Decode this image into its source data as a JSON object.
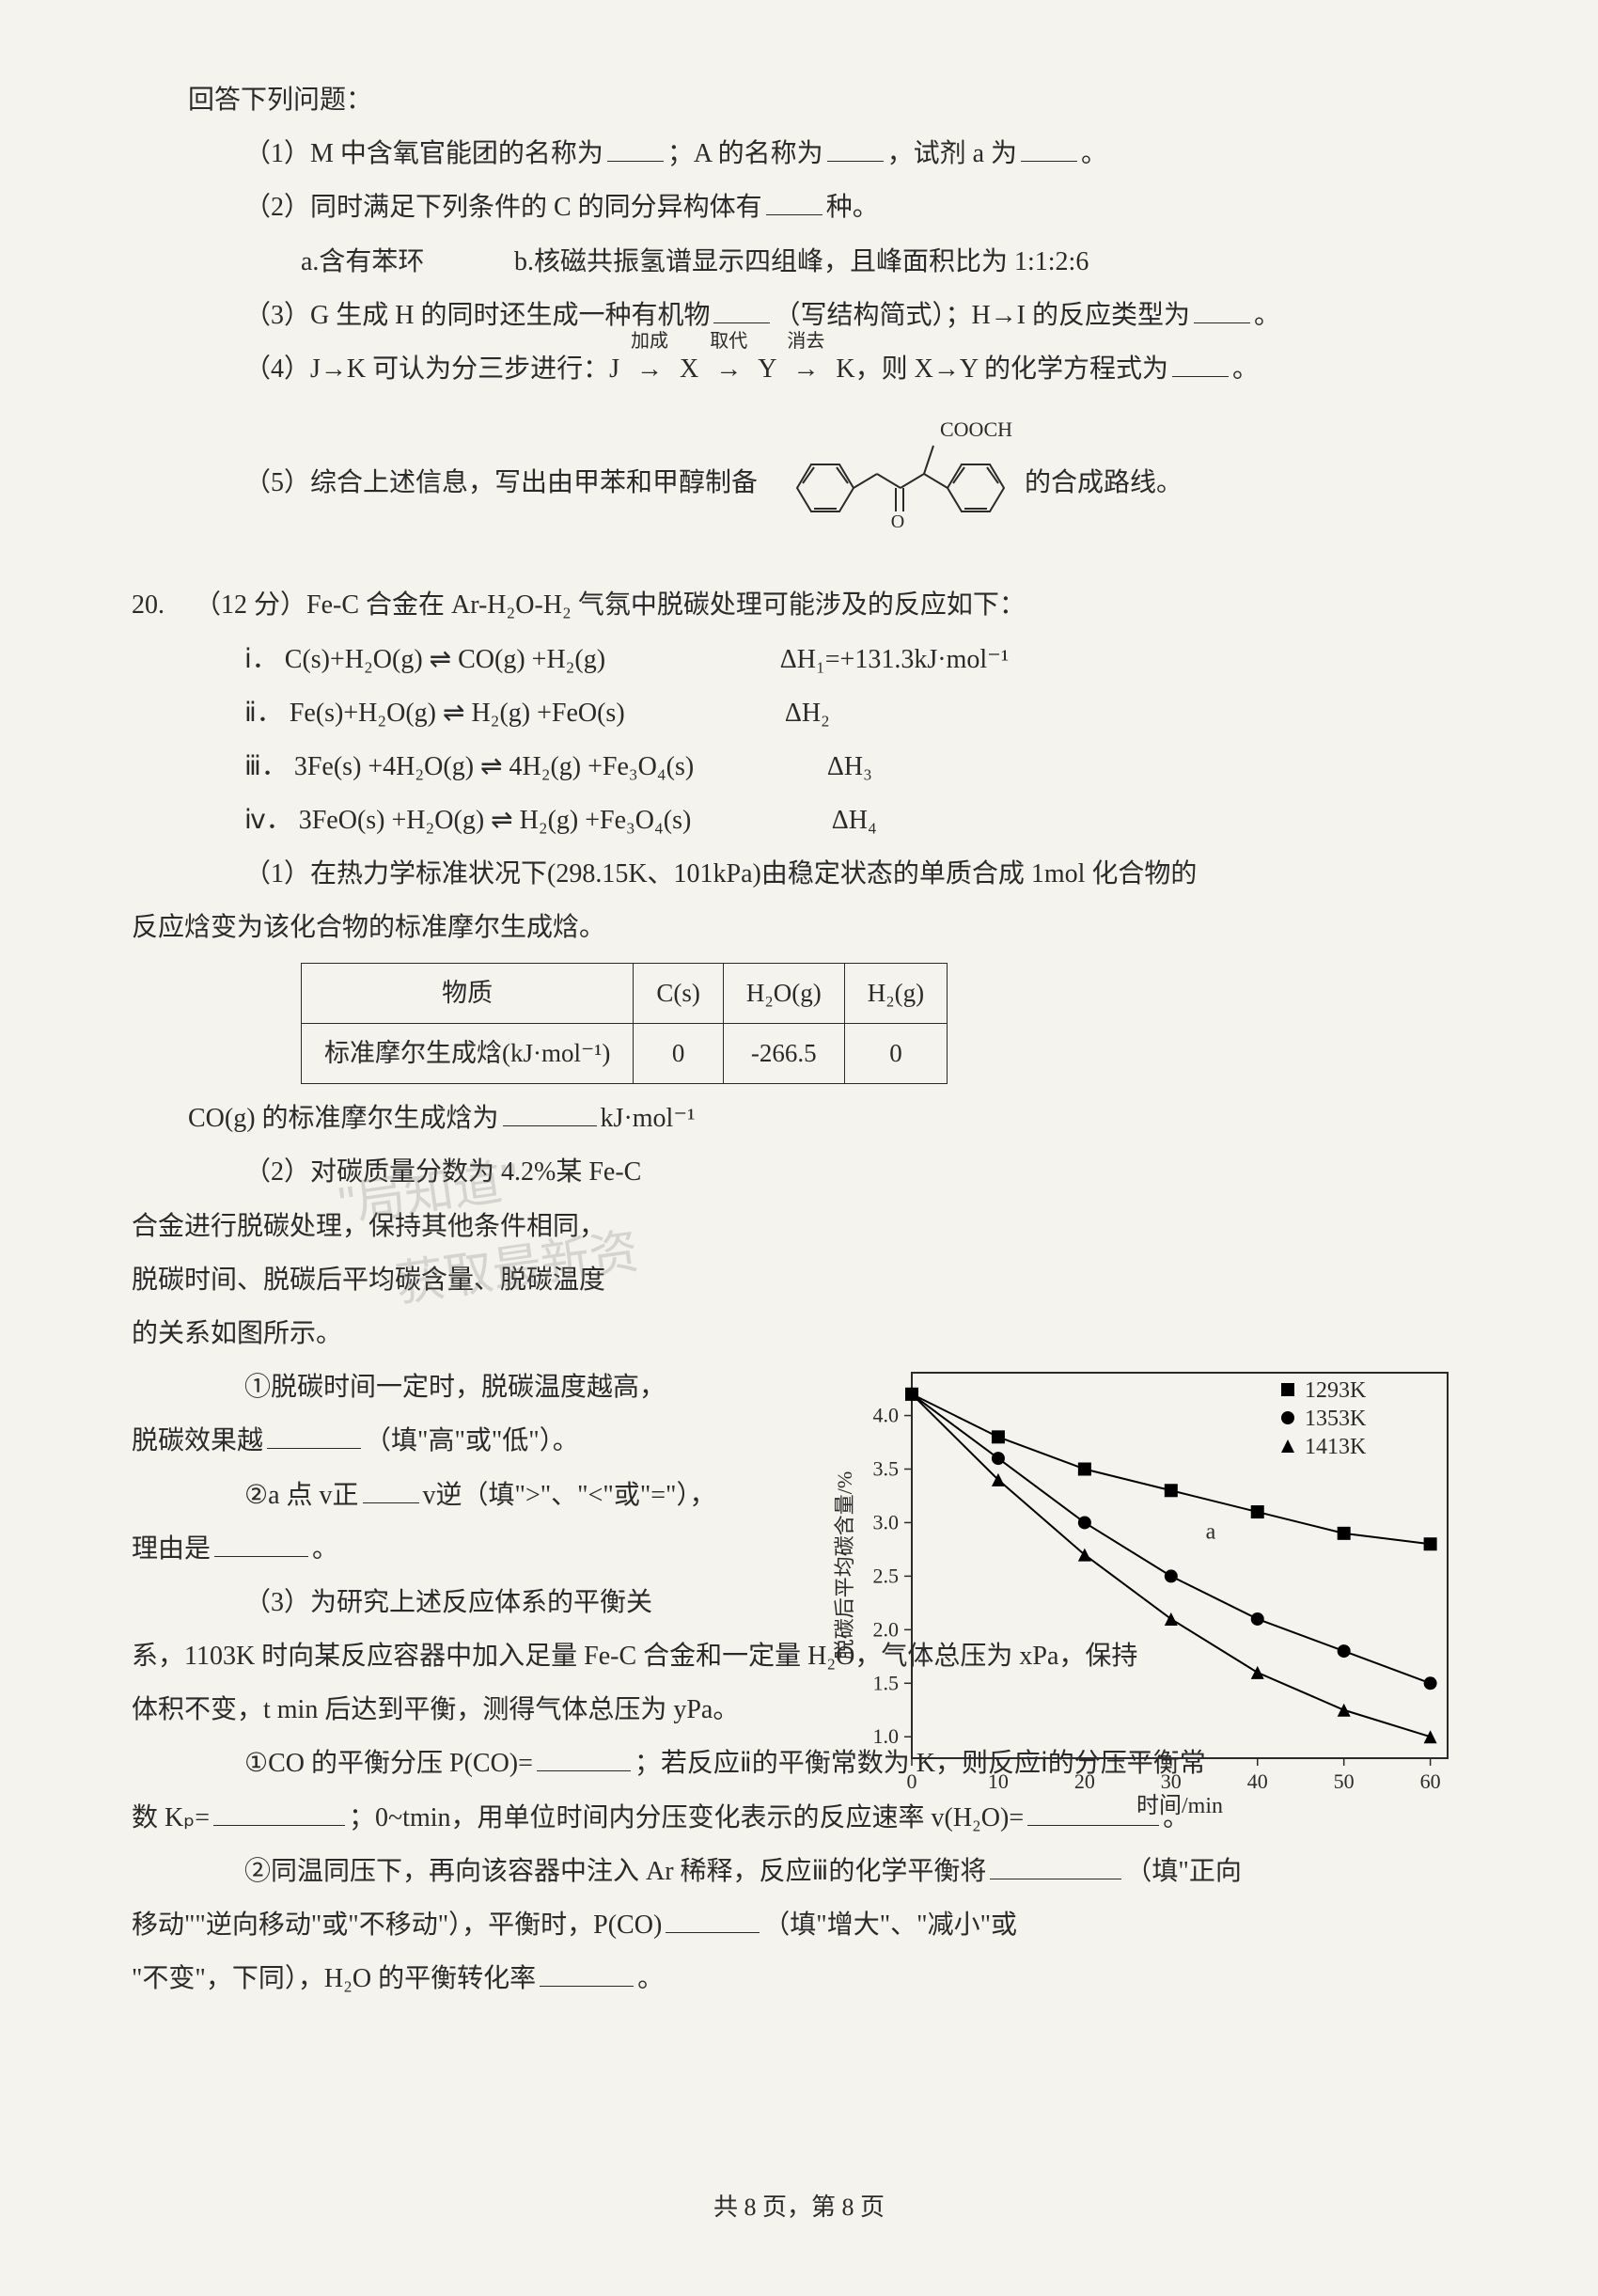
{
  "intro": "回答下列问题：",
  "q1": {
    "prefix": "（1）M 中含氧官能团的名称为",
    "mid1": "；A 的名称为",
    "mid2": "，试剂 a 为",
    "suffix": "。"
  },
  "q2": {
    "line1_prefix": "（2）同时满足下列条件的 C 的同分异构体有",
    "line1_suffix": "种。",
    "opt_a": "a.含有苯环",
    "opt_b": "b.核磁共振氢谱显示四组峰，且峰面积比为 1:1:2:6"
  },
  "q3": {
    "prefix": "（3）G 生成 H 的同时还生成一种有机物",
    "mid": "（写结构简式）；H→I 的反应类型为",
    "suffix": "。"
  },
  "q4": {
    "prefix": "（4）J→K 可认为分三步进行：J",
    "lbl_add": "加成",
    "x": "X",
    "lbl_sub": "取代",
    "y": "Y",
    "lbl_elim": "消去",
    "k": "K，则 X→Y 的化学方程式为",
    "suffix": "。"
  },
  "q5": {
    "prefix": "（5）综合上述信息，写出由甲苯和甲醇制备",
    "suffix": "的合成路线。",
    "formula_label": "COOCH₃"
  },
  "q20": {
    "num": "20.",
    "points": "（12 分）Fe-C 合金在 Ar-H₂O-H₂ 气氛中脱碳处理可能涉及的反应如下：",
    "eq1_label": "ⅰ．",
    "eq1": "C(s)+H₂O(g) ⇌ CO(g) +H₂(g)",
    "eq1_dh": "ΔH₁=+131.3kJ·mol⁻¹",
    "eq2_label": "ⅱ．",
    "eq2": "Fe(s)+H₂O(g) ⇌ H₂(g) +FeO(s)",
    "eq2_dh": "ΔH₂",
    "eq3_label": "ⅲ．",
    "eq3": "3Fe(s) +4H₂O(g) ⇌ 4H₂(g) +Fe₃O₄(s)",
    "eq3_dh": "ΔH₃",
    "eq4_label": "ⅳ．",
    "eq4": "3FeO(s) +H₂O(g) ⇌ H₂(g) +Fe₃O₄(s)",
    "eq4_dh": "ΔH₄",
    "p1_line1": "（1）在热力学标准状况下(298.15K、101kPa)由稳定状态的单质合成 1mol 化合物的",
    "p1_line2": "反应焓变为该化合物的标准摩尔生成焓。",
    "table": {
      "header_substance": "物质",
      "header_c": "C(s)",
      "header_h2o": "H₂O(g)",
      "header_h2": "H₂(g)",
      "row_label": "标准摩尔生成焓(kJ·mol⁻¹)",
      "val_c": "0",
      "val_h2o": "-266.5",
      "val_h2": "0"
    },
    "co_line_prefix": "CO(g) 的标准摩尔生成焓为",
    "co_line_suffix": "kJ·mol⁻¹",
    "p2_line1": "（2）对碳质量分数为 4.2%某 Fe-C",
    "p2_line2": "合金进行脱碳处理，保持其他条件相同，",
    "p2_line3": "脱碳时间、脱碳后平均碳含量、脱碳温度",
    "p2_line4": "的关系如图所示。",
    "p2_sub1_line1": "①脱碳时间一定时，脱碳温度越高，",
    "p2_sub1_line2_prefix": "脱碳效果越",
    "p2_sub1_line2_suffix": "（填\"高\"或\"低\"）。",
    "p2_sub2_prefix": "②a 点 v正",
    "p2_sub2_mid": "v逆（填\">\"、\"<\"或\"=\"），",
    "p2_reason_prefix": "理由是",
    "p2_reason_suffix": "。",
    "p3_line1": "（3）为研究上述反应体系的平衡关",
    "p3_line2": "系，1103K 时向某反应容器中加入足量 Fe-C 合金和一定量 H₂O，气体总压为 xPa，保持",
    "p3_line3": "体积不变，t min 后达到平衡，测得气体总压为 yPa。",
    "p3_sub1_prefix": "①CO 的平衡分压 P(CO)=",
    "p3_sub1_mid1": "；若反应ⅱ的平衡常数为 K，则反应ⅰ的分压平衡常",
    "p3_sub1_line2_prefix": "数 Kₚ=",
    "p3_sub1_line2_mid": "；0~tmin，用单位时间内分压变化表示的反应速率 v(H₂O)=",
    "p3_sub1_line2_suffix": "。",
    "p3_sub2_prefix": "②同温同压下，再向该容器中注入 Ar 稀释，反应ⅲ的化学平衡将",
    "p3_sub2_mid1": "（填\"正向",
    "p3_sub2_line2": "移动\"\"逆向移动\"或\"不移动\"），平衡时，P(CO)",
    "p3_sub2_mid2": "（填\"增大\"、\"减小\"或",
    "p3_sub2_line3_prefix": "\"不变\"，下同），H₂O 的平衡转化率",
    "p3_sub2_line3_suffix": "。"
  },
  "chart": {
    "type": "line",
    "x_label": "时间/min",
    "y_label": "脱碳后平均碳含量/%",
    "x_ticks": [
      0,
      10,
      20,
      30,
      40,
      50,
      60
    ],
    "y_ticks": [
      1.0,
      1.5,
      2.0,
      2.5,
      3.0,
      3.5,
      4.0
    ],
    "xlim": [
      0,
      62
    ],
    "ylim": [
      0.8,
      4.4
    ],
    "series": [
      {
        "name": "1293K",
        "marker": "square",
        "color": "#000000",
        "data": [
          [
            0,
            4.2
          ],
          [
            10,
            3.8
          ],
          [
            20,
            3.5
          ],
          [
            30,
            3.3
          ],
          [
            40,
            3.1
          ],
          [
            50,
            2.9
          ],
          [
            60,
            2.8
          ]
        ]
      },
      {
        "name": "1353K",
        "marker": "circle",
        "color": "#000000",
        "data": [
          [
            0,
            4.2
          ],
          [
            10,
            3.6
          ],
          [
            20,
            3.0
          ],
          [
            30,
            2.5
          ],
          [
            40,
            2.1
          ],
          [
            50,
            1.8
          ],
          [
            60,
            1.5
          ]
        ]
      },
      {
        "name": "1413K",
        "marker": "triangle",
        "color": "#000000",
        "data": [
          [
            0,
            4.2
          ],
          [
            10,
            3.4
          ],
          [
            20,
            2.7
          ],
          [
            30,
            2.1
          ],
          [
            40,
            1.6
          ],
          [
            50,
            1.25
          ],
          [
            60,
            1.0
          ]
        ]
      }
    ],
    "annotation_a_pos": [
      34,
      2.85
    ],
    "annotation_a_text": "a",
    "background": "#f5f3ee",
    "axis_color": "#2a2a2a",
    "line_width": 2,
    "marker_size": 7,
    "font_size_axis": 22,
    "font_size_legend": 24
  },
  "watermarks": {
    "wm1": "\"局知道\"",
    "wm2": "获取最新资"
  },
  "footer": "共 8 页，第 8 页"
}
